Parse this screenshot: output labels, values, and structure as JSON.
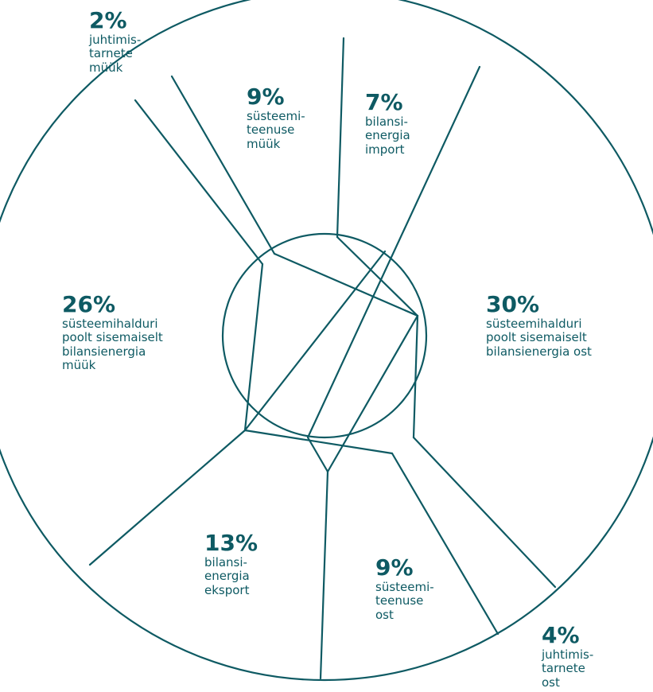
{
  "chart_data": {
    "type": "pie",
    "segments": [
      {
        "value": 30,
        "pct": "30%",
        "label": "süsteemihalduri\npoolt sisemaiselt\nbilansienergia ost"
      },
      {
        "value": 4,
        "pct": "4%",
        "label": "juhtimis-\ntarnete\nost"
      },
      {
        "value": 9,
        "pct": "9%",
        "label": "süsteemi-\nteenuse\nost"
      },
      {
        "value": 13,
        "pct": "13%",
        "label": "bilansi-\nenergia\neksport"
      },
      {
        "value": 26,
        "pct": "26%",
        "label": "süsteemihalduri\npoolt sisemaiselt\nbilansienergia\nmüük"
      },
      {
        "value": 2,
        "pct": "2%",
        "label": "juhtimis-\ntarnete\nmüük"
      },
      {
        "value": 9,
        "pct": "9%",
        "label": "süsteemi-\nteenuse\nmüük"
      },
      {
        "value": 7,
        "pct": "7%",
        "label": "bilansi-\nenergia\nimport"
      }
    ],
    "colors": {
      "stroke": "#0e5a63",
      "text": "#0e5a63",
      "background": "#ffffff"
    }
  }
}
